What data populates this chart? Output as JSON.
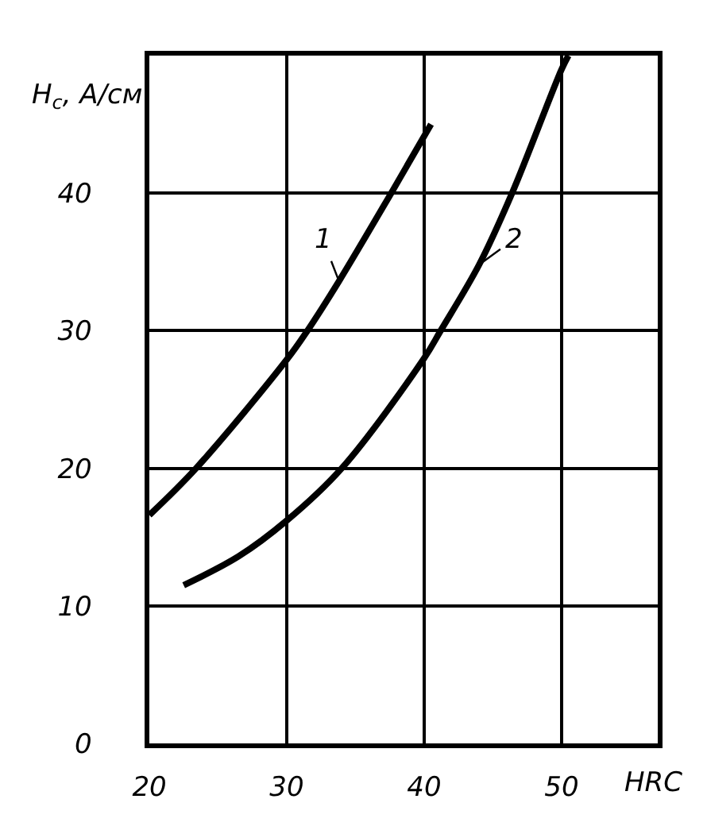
{
  "chart_data": {
    "type": "line",
    "xlabel": "HRC",
    "ylabel": "H$_{c}$, А/см",
    "xlim": [
      20,
      57
    ],
    "ylim": [
      0,
      50
    ],
    "xticks": [
      20,
      30,
      40,
      50
    ],
    "yticks": [
      0,
      10,
      20,
      30,
      40
    ],
    "grid": true,
    "marker": "none",
    "line_style": "solid",
    "series": [
      {
        "color": "#000000",
        "x": [
          20,
          23.4,
          30,
          31.5,
          33.8,
          37.6,
          40.5
        ],
        "values": [
          16.6,
          20,
          27.9,
          30,
          33.6,
          40,
          45
        ]
      },
      {
        "color": "#000000",
        "x": [
          22.5,
          26.5,
          30,
          34,
          40,
          41.2,
          44,
          46.4,
          50,
          50.5
        ],
        "values": [
          11.5,
          13.6,
          16.2,
          20,
          28,
          30,
          34.8,
          40,
          49,
          50
        ]
      }
    ],
    "annotations": [
      {
        "text": "1",
        "x": 33.8,
        "y": 33.6
      },
      {
        "text": "2",
        "x": 44,
        "y": 34.8
      }
    ]
  }
}
